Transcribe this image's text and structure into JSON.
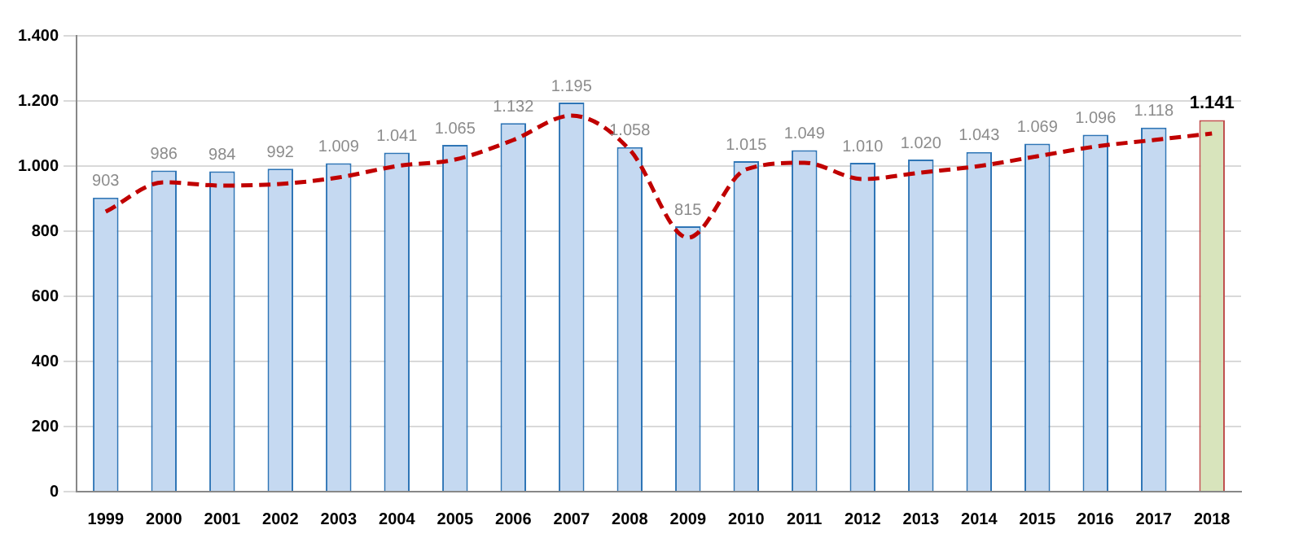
{
  "chart_data": {
    "type": "bar",
    "categories": [
      "1999",
      "2000",
      "2001",
      "2002",
      "2003",
      "2004",
      "2005",
      "2006",
      "2007",
      "2008",
      "2009",
      "2010",
      "2011",
      "2012",
      "2013",
      "2014",
      "2015",
      "2016",
      "2017",
      "2018"
    ],
    "series": [
      {
        "colors": [
          "#c5d9f1",
          "#c5d9f1",
          "#c5d9f1",
          "#c5d9f1",
          "#c5d9f1",
          "#c5d9f1",
          "#c5d9f1",
          "#c5d9f1",
          "#c5d9f1",
          "#c5d9f1",
          "#c5d9f1",
          "#c5d9f1",
          "#c5d9f1",
          "#c5d9f1",
          "#c5d9f1",
          "#c5d9f1",
          "#c5d9f1",
          "#c5d9f1",
          "#c5d9f1",
          "#d8e4bc"
        ],
        "values": [
          903,
          986,
          984,
          992,
          1009,
          1041,
          1065,
          1132,
          1195,
          1058,
          815,
          1015,
          1049,
          1010,
          1020,
          1043,
          1069,
          1096,
          1118,
          1141
        ],
        "value_labels": [
          "903",
          "986",
          "984",
          "992",
          "1.009",
          "1.041",
          "1.065",
          "1.132",
          "1.195",
          "1.058",
          "815",
          "1.015",
          "1.049",
          "1.010",
          "1.020",
          "1.043",
          "1.069",
          "1.096",
          "1.118",
          "1.141"
        ]
      },
      {
        "type": "line",
        "color": "#c00000",
        "line_style": "dashed",
        "marker": "none",
        "values": [
          860,
          950,
          940,
          945,
          965,
          1000,
          1020,
          1080,
          1155,
          1050,
          780,
          990,
          1010,
          960,
          980,
          1000,
          1030,
          1060,
          1080,
          1100
        ]
      }
    ],
    "ylim": [
      0,
      1400
    ],
    "yticks": [
      {
        "value": 0,
        "label": "0"
      },
      {
        "value": 200,
        "label": "200"
      },
      {
        "value": 400,
        "label": "400"
      },
      {
        "value": 600,
        "label": "600"
      },
      {
        "value": 800,
        "label": "800"
      },
      {
        "value": 1000,
        "label": "1.000"
      },
      {
        "value": 1200,
        "label": "1.200"
      },
      {
        "value": 1400,
        "label": "1.400"
      }
    ],
    "grid": "y",
    "legend": false
  }
}
